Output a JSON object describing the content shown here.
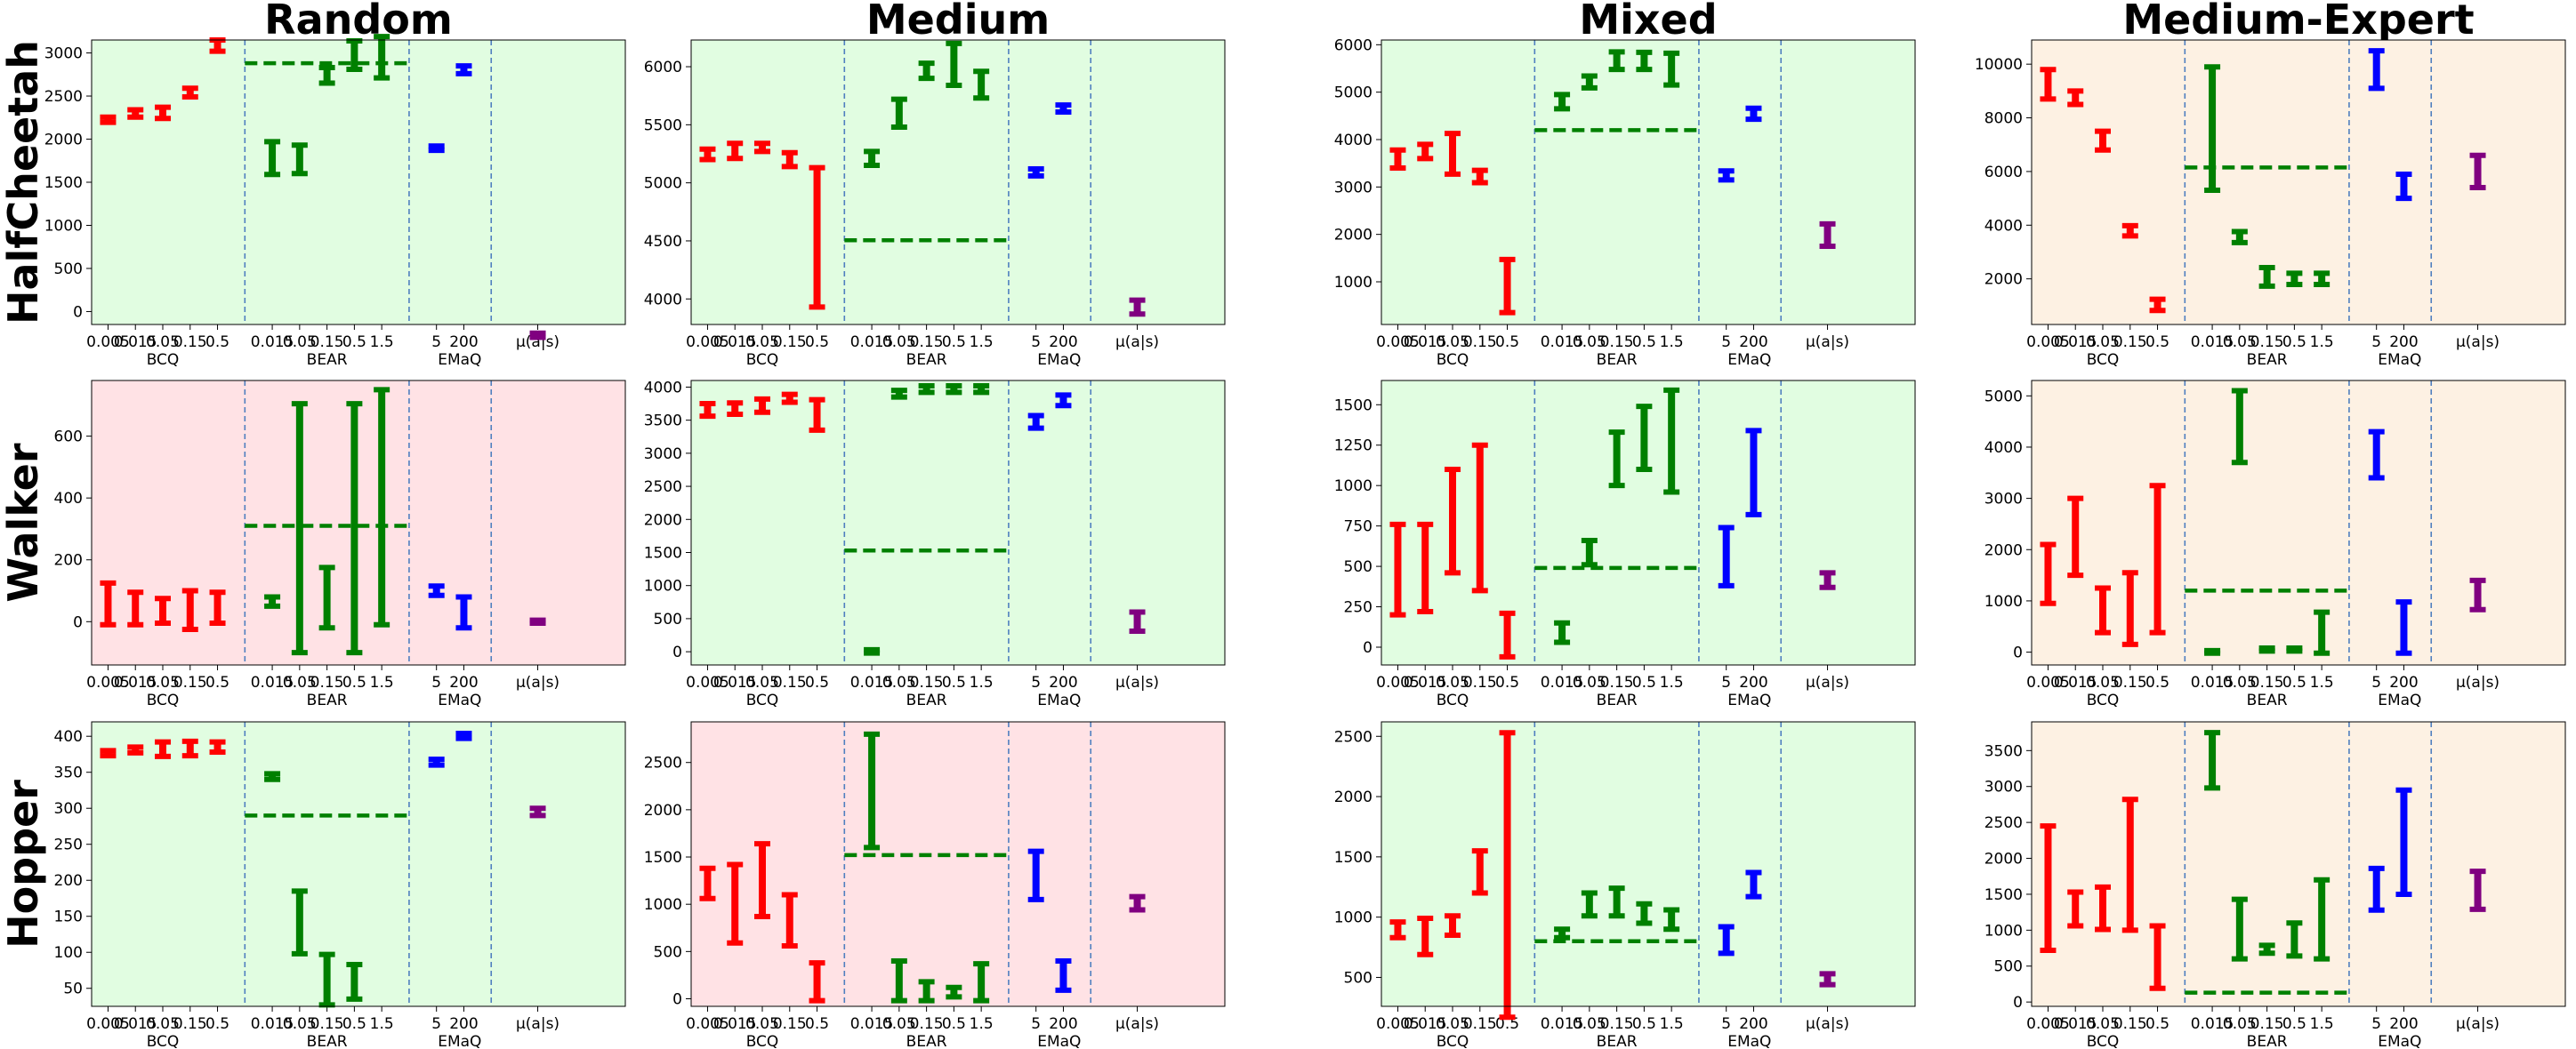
{
  "figure": {
    "col_titles": [
      "Random",
      "Medium",
      "Mixed",
      "Medium-Expert"
    ],
    "row_titles": [
      "HalfCheetah",
      "Walker",
      "Hopper"
    ],
    "colors": {
      "BCQ": "#ff0000",
      "BEAR": "#008000",
      "EMaQ": "#0000ff",
      "mu": "#800080",
      "bg_green": "#e1fde1",
      "bg_red": "#ffe2e5",
      "bg_orange": "#fdf1e3",
      "separator": "#4f7fbf"
    },
    "groups": [
      {
        "name": "BCQ",
        "ticks": [
          "0.005",
          "0.015",
          "0.05",
          "0.15",
          "0.5"
        ]
      },
      {
        "name": "BEAR",
        "ticks": [
          "0.015",
          "0.05",
          "0.15",
          "0.5",
          "1.5"
        ]
      },
      {
        "name": "EMaQ",
        "ticks": [
          "5",
          "200"
        ]
      },
      {
        "name": "",
        "ticks": [
          "μ(a|s)"
        ]
      }
    ]
  },
  "chart_data": [
    {
      "type": "errorbar",
      "title": "Random",
      "row": "HalfCheetah",
      "background": "green",
      "ylim": [
        -150,
        3150
      ],
      "yticks": [
        0,
        500,
        1000,
        1500,
        2000,
        2500,
        3000
      ],
      "bear_reference": 2880,
      "BCQ": [
        [
          2195,
          2255
        ],
        [
          2255,
          2340
        ],
        [
          2240,
          2370
        ],
        [
          2490,
          2590
        ],
        [
          3020,
          3150
        ]
      ],
      "BEAR": [
        [
          1590,
          1970
        ],
        [
          1600,
          1930
        ],
        [
          2650,
          2830
        ],
        [
          2810,
          3140
        ],
        [
          2710,
          3190
        ]
      ],
      "EMaQ": [
        [
          1870,
          1920
        ],
        [
          2760,
          2850
        ]
      ],
      "mu": [
        [
          -300,
          -250
        ]
      ]
    },
    {
      "type": "errorbar",
      "title": "Medium",
      "row": "HalfCheetah",
      "background": "green",
      "ylim": [
        3780,
        6230
      ],
      "yticks": [
        4000,
        4500,
        5000,
        5500,
        6000
      ],
      "bear_reference": 4505,
      "BCQ": [
        [
          5200,
          5290
        ],
        [
          5210,
          5340
        ],
        [
          5270,
          5340
        ],
        [
          5140,
          5260
        ],
        [
          3930,
          5130
        ]
      ],
      "BEAR": [
        [
          5150,
          5270
        ],
        [
          5480,
          5720
        ],
        [
          5900,
          6030
        ],
        [
          5840,
          6200
        ],
        [
          5730,
          5960
        ]
      ],
      "EMaQ": [
        [
          5060,
          5120
        ],
        [
          5610,
          5670
        ]
      ],
      "mu": [
        [
          3870,
          3990
        ]
      ]
    },
    {
      "type": "errorbar",
      "title": "Mixed",
      "row": "HalfCheetah",
      "background": "green",
      "ylim": [
        100,
        6100
      ],
      "yticks": [
        1000,
        2000,
        3000,
        4000,
        5000,
        6000
      ],
      "bear_reference": 4200,
      "BCQ": [
        [
          3400,
          3780
        ],
        [
          3600,
          3900
        ],
        [
          3270,
          4130
        ],
        [
          3090,
          3350
        ],
        [
          350,
          1470
        ]
      ],
      "BEAR": [
        [
          4650,
          4950
        ],
        [
          5090,
          5340
        ],
        [
          5480,
          5850
        ],
        [
          5480,
          5840
        ],
        [
          5150,
          5820
        ]
      ],
      "EMaQ": [
        [
          3150,
          3340
        ],
        [
          4430,
          4660
        ]
      ],
      "mu": [
        [
          1750,
          2220
        ]
      ]
    },
    {
      "type": "errorbar",
      "title": "Medium-Expert",
      "row": "HalfCheetah",
      "background": "orange",
      "ylim": [
        300,
        10900
      ],
      "yticks": [
        2000,
        4000,
        6000,
        8000,
        10000
      ],
      "bear_reference": 6150,
      "BCQ": [
        [
          8700,
          9800
        ],
        [
          8500,
          9000
        ],
        [
          6800,
          7500
        ],
        [
          3600,
          3980
        ],
        [
          820,
          1240
        ]
      ],
      "BEAR": [
        [
          5300,
          9900
        ],
        [
          3350,
          3760
        ],
        [
          1730,
          2420
        ],
        [
          1790,
          2210
        ],
        [
          1790,
          2210
        ]
      ],
      "EMaQ": [
        [
          9100,
          10500
        ],
        [
          5000,
          5900
        ]
      ],
      "mu": [
        [
          5400,
          6600
        ]
      ]
    },
    {
      "type": "errorbar",
      "title": "Random",
      "row": "Walker",
      "background": "red",
      "ylim": [
        -140,
        780
      ],
      "yticks": [
        0,
        200,
        400,
        600
      ],
      "bear_reference": 310,
      "BCQ": [
        [
          -10,
          125
        ],
        [
          -10,
          95
        ],
        [
          -5,
          75
        ],
        [
          -25,
          100
        ],
        [
          -5,
          95
        ]
      ],
      "BEAR": [
        [
          50,
          80
        ],
        [
          -100,
          705
        ],
        [
          -20,
          175
        ],
        [
          -100,
          705
        ],
        [
          -10,
          750
        ]
      ],
      "EMaQ": [
        [
          85,
          115
        ],
        [
          -20,
          80
        ]
      ],
      "mu": [
        [
          -5,
          5
        ]
      ]
    },
    {
      "type": "errorbar",
      "title": "Medium",
      "row": "Walker",
      "background": "green",
      "ylim": [
        -200,
        4100
      ],
      "yticks": [
        0,
        500,
        1000,
        1500,
        2000,
        2500,
        3000,
        3500,
        4000
      ],
      "bear_reference": 1530,
      "BCQ": [
        [
          3560,
          3750
        ],
        [
          3590,
          3760
        ],
        [
          3620,
          3820
        ],
        [
          3770,
          3890
        ],
        [
          3350,
          3810
        ]
      ],
      "BEAR": [
        [
          -20,
          30
        ],
        [
          3850,
          3950
        ],
        [
          3920,
          4020
        ],
        [
          3920,
          4020
        ],
        [
          3920,
          4020
        ]
      ],
      "EMaQ": [
        [
          3380,
          3570
        ],
        [
          3720,
          3880
        ]
      ],
      "mu": [
        [
          310,
          600
        ]
      ]
    },
    {
      "type": "errorbar",
      "title": "Mixed",
      "row": "Walker",
      "background": "green",
      "ylim": [
        -110,
        1650
      ],
      "yticks": [
        0,
        250,
        500,
        750,
        1000,
        1250,
        1500
      ],
      "bear_reference": 490,
      "BCQ": [
        [
          200,
          760
        ],
        [
          220,
          760
        ],
        [
          460,
          1100
        ],
        [
          350,
          1250
        ],
        [
          -60,
          210
        ]
      ],
      "BEAR": [
        [
          30,
          150
        ],
        [
          510,
          660
        ],
        [
          1000,
          1330
        ],
        [
          1100,
          1490
        ],
        [
          960,
          1590
        ]
      ],
      "EMaQ": [
        [
          380,
          740
        ],
        [
          820,
          1340
        ]
      ],
      "mu": [
        [
          370,
          460
        ]
      ]
    },
    {
      "type": "errorbar",
      "title": "Medium-Expert",
      "row": "Walker",
      "background": "orange",
      "ylim": [
        -250,
        5300
      ],
      "yticks": [
        0,
        1000,
        2000,
        3000,
        4000,
        5000
      ],
      "bear_reference": 1200,
      "BCQ": [
        [
          950,
          2100
        ],
        [
          1500,
          3000
        ],
        [
          380,
          1250
        ],
        [
          150,
          1550
        ],
        [
          380,
          3250
        ]
      ],
      "BEAR": [
        [
          -20,
          30
        ],
        [
          3700,
          5100
        ],
        [
          20,
          80
        ],
        [
          20,
          80
        ],
        [
          -20,
          780
        ]
      ],
      "EMaQ": [
        [
          3400,
          4300
        ],
        [
          -20,
          980
        ]
      ],
      "mu": [
        [
          830,
          1400
        ]
      ]
    },
    {
      "type": "errorbar",
      "title": "Random",
      "row": "Hopper",
      "background": "green",
      "ylim": [
        25,
        420
      ],
      "yticks": [
        50,
        100,
        150,
        200,
        250,
        300,
        350,
        400
      ],
      "bear_reference": 290,
      "BCQ": [
        [
          373,
          380
        ],
        [
          377,
          385
        ],
        [
          372,
          392
        ],
        [
          373,
          393
        ],
        [
          378,
          392
        ]
      ],
      "BEAR": [
        [
          340,
          348
        ],
        [
          98,
          185
        ],
        [
          27,
          97
        ],
        [
          35,
          83
        ],
        null
      ],
      "EMaQ": [
        [
          360,
          368
        ],
        [
          397,
          404
        ]
      ],
      "mu": [
        [
          290,
          300
        ]
      ]
    },
    {
      "type": "errorbar",
      "title": "Medium",
      "row": "Hopper",
      "background": "red",
      "ylim": [
        -80,
        2930
      ],
      "yticks": [
        0,
        500,
        1000,
        1500,
        2000,
        2500
      ],
      "bear_reference": 1520,
      "BCQ": [
        [
          1060,
          1380
        ],
        [
          590,
          1420
        ],
        [
          870,
          1640
        ],
        [
          560,
          1100
        ],
        [
          -20,
          380
        ]
      ],
      "BEAR": [
        [
          1600,
          2800
        ],
        [
          -20,
          400
        ],
        [
          -20,
          180
        ],
        [
          20,
          120
        ],
        [
          -20,
          370
        ]
      ],
      "EMaQ": [
        [
          1050,
          1560
        ],
        [
          90,
          400
        ]
      ],
      "mu": [
        [
          940,
          1080
        ]
      ]
    },
    {
      "type": "errorbar",
      "title": "Mixed",
      "row": "Hopper",
      "background": "green",
      "ylim": [
        260,
        2620
      ],
      "yticks": [
        500,
        1000,
        1500,
        2000,
        2500
      ],
      "bear_reference": 800,
      "BCQ": [
        [
          830,
          960
        ],
        [
          690,
          990
        ],
        [
          850,
          1010
        ],
        [
          1200,
          1550
        ],
        [
          170,
          2530
        ]
      ],
      "BEAR": [
        [
          830,
          900
        ],
        [
          1010,
          1200
        ],
        [
          1010,
          1240
        ],
        [
          950,
          1110
        ],
        [
          900,
          1060
        ]
      ],
      "EMaQ": [
        [
          700,
          920
        ],
        [
          1170,
          1370
        ]
      ],
      "mu": [
        [
          440,
          530
        ]
      ]
    },
    {
      "type": "errorbar",
      "title": "Medium-Expert",
      "row": "Hopper",
      "background": "orange",
      "ylim": [
        -60,
        3900
      ],
      "yticks": [
        0,
        500,
        1000,
        1500,
        2000,
        2500,
        3000,
        3500
      ],
      "bear_reference": 130,
      "BCQ": [
        [
          720,
          2450
        ],
        [
          1060,
          1530
        ],
        [
          1010,
          1600
        ],
        [
          1000,
          2820
        ],
        [
          190,
          1060
        ]
      ],
      "BEAR": [
        [
          2980,
          3750
        ],
        [
          600,
          1430
        ],
        [
          680,
          790
        ],
        [
          640,
          1100
        ],
        [
          600,
          1700
        ]
      ],
      "EMaQ": [
        [
          1280,
          1860
        ],
        [
          1500,
          2950
        ]
      ],
      "mu": [
        [
          1290,
          1820
        ]
      ]
    }
  ]
}
